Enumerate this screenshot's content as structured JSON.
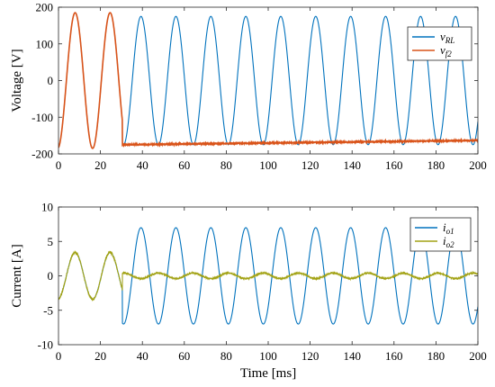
{
  "chart_data": [
    {
      "type": "line",
      "xlabel": "",
      "ylabel": "Voltage [V]",
      "xlim": [
        0,
        200
      ],
      "ylim": [
        -200,
        200
      ],
      "xticks": [
        0,
        20,
        40,
        60,
        80,
        100,
        120,
        140,
        160,
        180,
        200
      ],
      "yticks": [
        200,
        100,
        0,
        -100,
        -200
      ],
      "grid": false,
      "legend_position": "top-right",
      "series": [
        {
          "name": "v_RL",
          "legend_main": "v",
          "legend_sub": "RL",
          "color": "#0072BD",
          "description_values": {
            "amplitude_before_ms_31": 185,
            "amplitude_after_ms_31": 175,
            "period_ms": 16.67,
            "frequency_hz": 60
          },
          "x": [
            0,
            4,
            8,
            12,
            16,
            20,
            24,
            28,
            31,
            35,
            40,
            45,
            50,
            57,
            65,
            73,
            82,
            90,
            98,
            107,
            115,
            123,
            132,
            140,
            148,
            157,
            165,
            173,
            182,
            190,
            198,
            200
          ],
          "y": [
            -175,
            60,
            185,
            40,
            -185,
            40,
            185,
            40,
            -150,
            -150,
            175,
            0,
            -175,
            175,
            -175,
            175,
            -175,
            175,
            -175,
            175,
            -175,
            175,
            -175,
            175,
            -175,
            175,
            -175,
            175,
            -175,
            175,
            -175,
            -60
          ]
        },
        {
          "name": "v_f2",
          "legend_main": "v",
          "legend_sub": "f2",
          "color": "#D95319",
          "x": [
            0,
            4,
            8,
            12,
            16,
            20,
            24,
            28,
            31,
            60,
            100,
            140,
            180,
            200
          ],
          "y": [
            -175,
            60,
            185,
            40,
            -185,
            40,
            185,
            40,
            -175,
            -172,
            -169,
            -166,
            -164,
            -163
          ]
        }
      ]
    },
    {
      "type": "line",
      "xlabel": "Time [ms]",
      "ylabel": "Current [A]",
      "xlim": [
        0,
        200
      ],
      "ylim": [
        -10,
        10
      ],
      "xticks": [
        0,
        20,
        40,
        60,
        80,
        100,
        120,
        140,
        160,
        180,
        200
      ],
      "yticks": [
        10,
        5,
        0,
        -5,
        -10
      ],
      "grid": false,
      "legend_position": "top-right",
      "series": [
        {
          "name": "i_o1",
          "legend_main": "i",
          "legend_sub": "o1",
          "color": "#0072BD",
          "description_values": {
            "amplitude_before_ms_31": 3.5,
            "amplitude_after_ms_31": 7.0,
            "period_ms": 16.67
          },
          "x": [
            0,
            8,
            16,
            25,
            31,
            40,
            48,
            57,
            65,
            73,
            82,
            90,
            98,
            107,
            115,
            123,
            132,
            140,
            148,
            157,
            165,
            173,
            182,
            190,
            198,
            200
          ],
          "y": [
            -3.5,
            3.5,
            -3.5,
            3.5,
            -7,
            7,
            -7,
            7,
            -7,
            7,
            -7,
            7,
            -7,
            7,
            -7,
            7,
            -7,
            7,
            -7,
            7,
            -7,
            7,
            -7,
            7,
            -7,
            -7
          ]
        },
        {
          "name": "i_o2",
          "legend_main": "i",
          "legend_sub": "o2",
          "color": "#A2A214",
          "description_values": {
            "amplitude_before_ms_31": 3.5,
            "amplitude_after_ms_31": 0.4
          },
          "x": [
            0,
            8,
            16,
            25,
            31,
            40,
            48,
            57,
            65,
            73,
            82,
            90,
            98,
            107,
            115,
            123,
            132,
            140,
            148,
            157,
            165,
            173,
            182,
            190,
            198,
            200
          ],
          "y": [
            -3.5,
            3.5,
            -3.5,
            3.5,
            -0.4,
            0.4,
            -0.4,
            0.4,
            -0.4,
            0.4,
            -0.4,
            0.4,
            -0.4,
            0.4,
            -0.4,
            0.4,
            -0.4,
            0.4,
            -0.4,
            0.4,
            -0.4,
            0.4,
            -0.4,
            0.4,
            -0.4,
            0
          ]
        }
      ]
    }
  ]
}
